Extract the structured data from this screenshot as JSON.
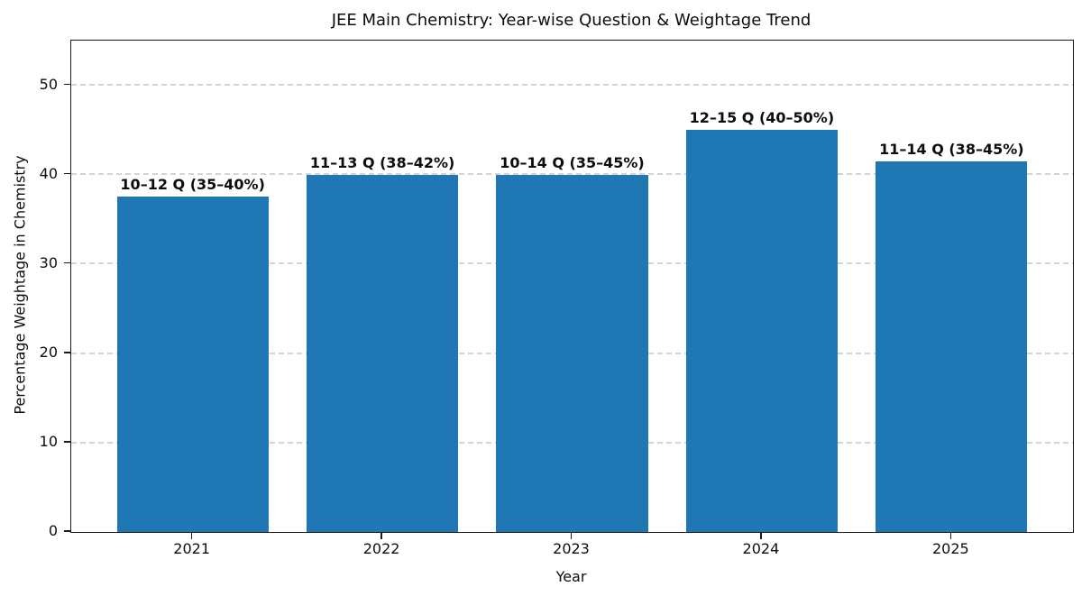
{
  "chart_data": {
    "type": "bar",
    "title": "JEE Main Chemistry: Year-wise Question & Weightage Trend",
    "xlabel": "Year",
    "ylabel": "Percentage Weightage in Chemistry",
    "categories": [
      "2021",
      "2022",
      "2023",
      "2024",
      "2025"
    ],
    "values": [
      37.5,
      40,
      40,
      45,
      41.5
    ],
    "bar_labels": [
      "10–12 Q (35–40%)",
      "11–13 Q (38–42%)",
      "10–14 Q (35–45%)",
      "12–15 Q (40–50%)",
      "11–14 Q (38–45%)"
    ],
    "yticks": [
      0,
      10,
      20,
      30,
      40,
      50
    ],
    "ylim": [
      0,
      55
    ],
    "bar_color": "#1f77b4",
    "bar_width_units": 0.8,
    "grid": "horizontal-dashed",
    "grid_color": "#d4d4d4",
    "legend": "none"
  }
}
